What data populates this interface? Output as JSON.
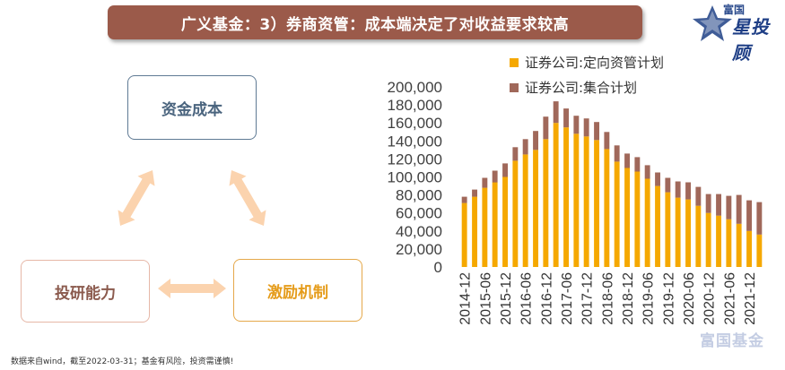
{
  "header": {
    "title": "广义基金：3）券商资管：成本端决定了对收益要求较高"
  },
  "brand": {
    "line1": "富国",
    "line2": "星投顾",
    "watermark": "富国基金"
  },
  "diagram": {
    "node_cost": "资金成本",
    "node_research": "投研能力",
    "node_incentive": "激励机制",
    "arrow_color": "#fbd3ae"
  },
  "footnote": "数据来自wind，截至2022-03-31；基金有风险，投资需谨慎!",
  "chart_data": {
    "type": "bar",
    "stacked": true,
    "title": "",
    "xlabel": "",
    "ylabel": "",
    "ylim": [
      0,
      200000
    ],
    "yticks": [
      "0",
      "20,000",
      "40,000",
      "60,000",
      "80,000",
      "100,000",
      "120,000",
      "140,000",
      "160,000",
      "180,000",
      "200,000"
    ],
    "legend_position": "top",
    "colors": [
      "#f5a800",
      "#a0685a"
    ],
    "categories": [
      "2014-12",
      "2015-03",
      "2015-06",
      "2015-09",
      "2015-12",
      "2016-03",
      "2016-06",
      "2016-09",
      "2016-12",
      "2017-03",
      "2017-06",
      "2017-09",
      "2017-12",
      "2018-03",
      "2018-06",
      "2018-09",
      "2018-12",
      "2019-03",
      "2019-06",
      "2019-09",
      "2019-12",
      "2020-03",
      "2020-06",
      "2020-09",
      "2020-12",
      "2021-03",
      "2021-06",
      "2021-09",
      "2021-12",
      "2022-03"
    ],
    "x_tick_labels": [
      "2014-12",
      "2015-06",
      "2015-12",
      "2016-06",
      "2016-12",
      "2017-06",
      "2017-12",
      "2018-06",
      "2018-12",
      "2019-06",
      "2019-12",
      "2020-06",
      "2020-12",
      "2021-06",
      "2021-12"
    ],
    "series": [
      {
        "name": "证券公司:定向资管计划",
        "values": [
          71000,
          78000,
          88000,
          94000,
          100000,
          118000,
          125000,
          130000,
          142000,
          160000,
          155000,
          148000,
          145000,
          141000,
          131000,
          117000,
          110000,
          106000,
          98000,
          90000,
          83000,
          77000,
          75000,
          68000,
          60000,
          57000,
          53000,
          48000,
          40000,
          36000
        ]
      },
      {
        "name": "证券公司:集合计划",
        "values": [
          7000,
          8000,
          11000,
          13000,
          15000,
          15000,
          17000,
          21000,
          25000,
          24000,
          21000,
          20000,
          20000,
          20000,
          19000,
          18000,
          16000,
          16000,
          15000,
          15000,
          16000,
          18000,
          19000,
          21000,
          21000,
          24000,
          26000,
          32000,
          34000,
          36000
        ]
      }
    ]
  }
}
